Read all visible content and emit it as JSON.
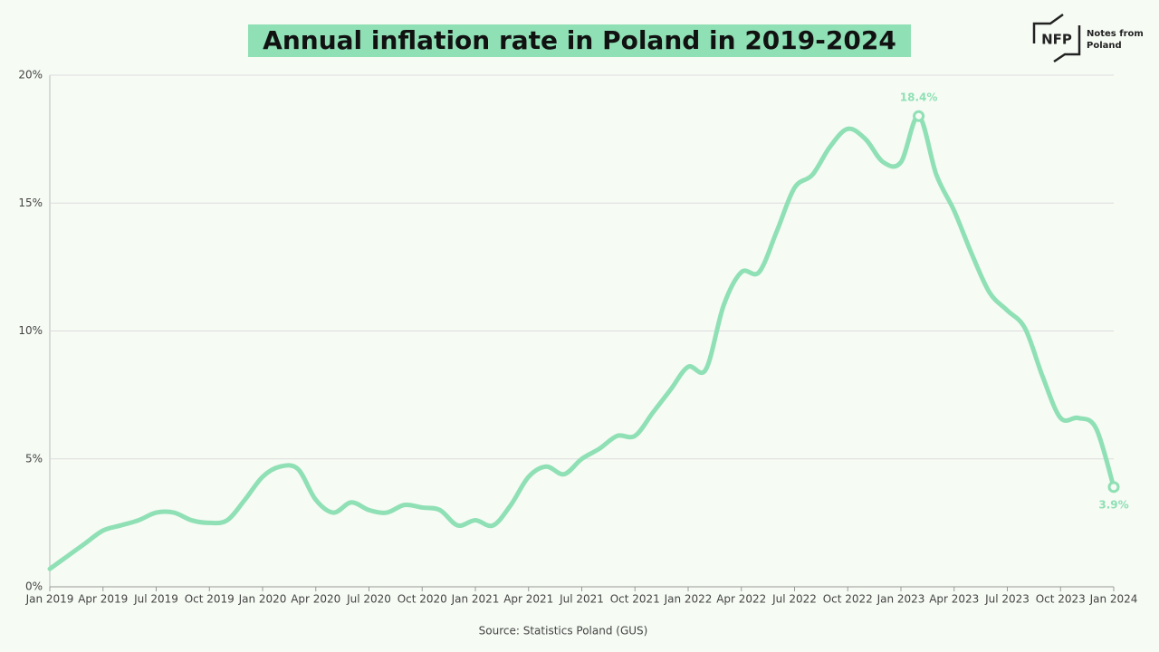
{
  "chart_data": {
    "type": "line",
    "title": "Annual inflation rate in Poland in 2019-2024",
    "source": "Source: Statistics Poland (GUS)",
    "categories": [
      "Jan 2019",
      null,
      null,
      "Apr 2019",
      null,
      null,
      "Jul 2019",
      null,
      null,
      "Oct 2019",
      null,
      null,
      "Jan 2020",
      null,
      null,
      "Apr 2020",
      null,
      null,
      "Jul 2020",
      null,
      null,
      "Oct 2020",
      null,
      null,
      "Jan 2021",
      null,
      null,
      "Apr 2021",
      null,
      null,
      "Jul 2021",
      null,
      null,
      "Oct 2021",
      null,
      null,
      "Jan 2022",
      null,
      null,
      "Apr 2022",
      null,
      null,
      "Jul 2022",
      null,
      null,
      "Oct 2022",
      null,
      null,
      "Jan 2023",
      null,
      null,
      "Apr 2023",
      null,
      null,
      "Jul 2023",
      null,
      null,
      "Oct 2023",
      null,
      null,
      "Jan 2024"
    ],
    "series": [
      {
        "name": "Annual inflation rate",
        "color": "#8fe0b5",
        "values": [
          0.7,
          1.2,
          1.7,
          2.2,
          2.4,
          2.6,
          2.9,
          2.9,
          2.6,
          2.5,
          2.6,
          3.4,
          4.3,
          4.7,
          4.6,
          3.4,
          2.9,
          3.3,
          3.0,
          2.9,
          3.2,
          3.1,
          3.0,
          2.4,
          2.6,
          2.4,
          3.2,
          4.3,
          4.7,
          4.4,
          5.0,
          5.4,
          5.9,
          5.9,
          6.8,
          7.7,
          8.6,
          8.5,
          11.0,
          12.3,
          12.3,
          13.9,
          15.6,
          16.1,
          17.2,
          17.9,
          17.5,
          16.6,
          16.6,
          18.4,
          16.1,
          14.7,
          13.0,
          11.5,
          10.8,
          10.1,
          8.2,
          6.6,
          6.6,
          6.2,
          3.9
        ],
        "value_labels": [
          null,
          null,
          null,
          null,
          null,
          null,
          null,
          null,
          null,
          null,
          null,
          null,
          null,
          null,
          null,
          null,
          null,
          null,
          null,
          null,
          null,
          null,
          null,
          null,
          null,
          null,
          null,
          null,
          null,
          null,
          null,
          null,
          null,
          null,
          null,
          null,
          null,
          null,
          null,
          null,
          null,
          null,
          null,
          null,
          null,
          null,
          null,
          null,
          null,
          "18.4%",
          null,
          null,
          null,
          null,
          null,
          null,
          null,
          null,
          null,
          null,
          "3.9%"
        ]
      }
    ],
    "ylim": [
      0,
      20
    ],
    "yticks": [
      {
        "value": 0,
        "label": "0%"
      },
      {
        "value": 5,
        "label": "5%"
      },
      {
        "value": 10,
        "label": "10%"
      },
      {
        "value": 15,
        "label": "15%"
      },
      {
        "value": 20,
        "label": "20%"
      }
    ],
    "grid": true
  },
  "logo": {
    "mark": "NFP",
    "text": [
      "Notes from",
      "Poland"
    ]
  }
}
